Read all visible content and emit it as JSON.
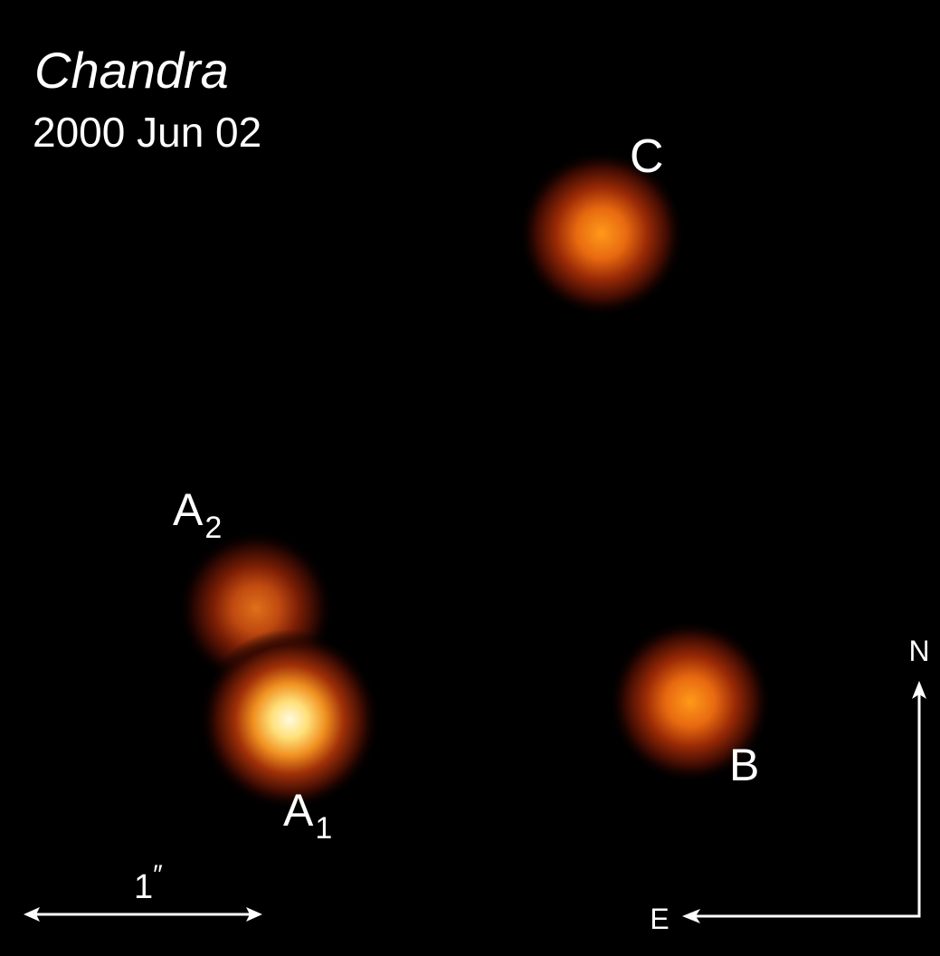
{
  "header": {
    "instrument": "Chandra",
    "date": "2000 Jun 02"
  },
  "sources": [
    {
      "label": "C"
    },
    {
      "label": "A",
      "subscript": "2"
    },
    {
      "label": "A",
      "subscript": "1"
    },
    {
      "label": "B"
    }
  ],
  "scale_bar": {
    "label": "1",
    "unit": "″"
  },
  "compass": {
    "north": "N",
    "east": "E"
  }
}
